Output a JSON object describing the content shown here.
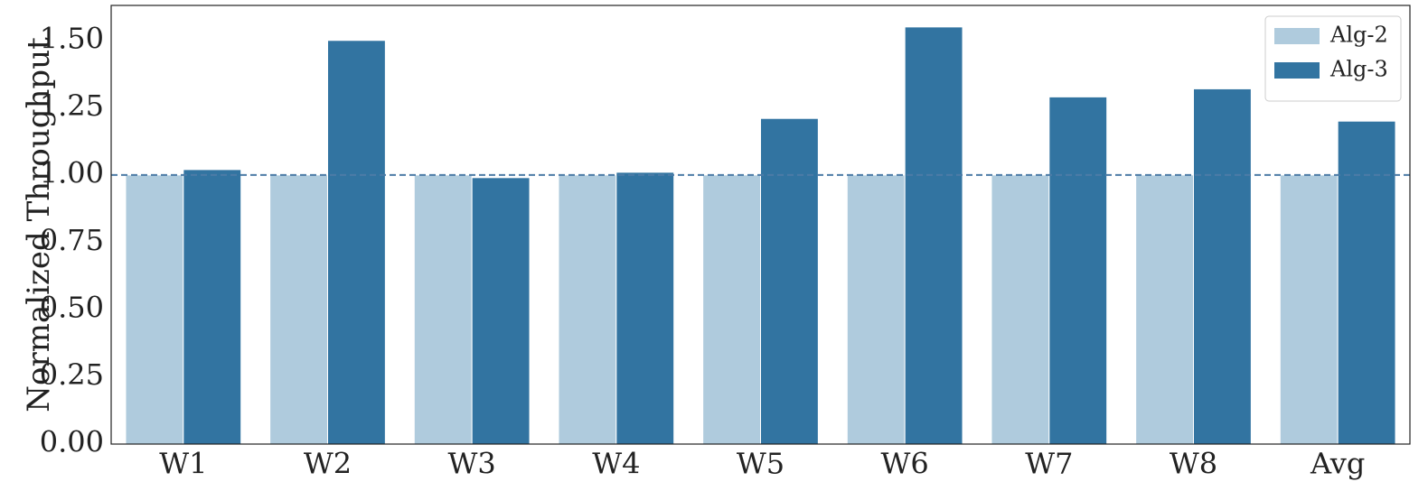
{
  "chart_data": {
    "type": "bar",
    "y_label": "Normalized Throughput",
    "categories": [
      "W1",
      "W2",
      "W3",
      "W4",
      "W5",
      "W6",
      "W7",
      "W8",
      "Avg"
    ],
    "series": [
      {
        "name": "Alg-2",
        "color": "#afcbdd",
        "values": [
          1,
          1,
          1,
          1,
          1,
          1,
          1,
          1,
          1
        ]
      },
      {
        "name": "Alg-3",
        "color": "#3274a1",
        "values": [
          1.02,
          1.5,
          0.99,
          1.01,
          1.21,
          1.55,
          1.29,
          1.32,
          1.2
        ]
      }
    ],
    "ylim": [
      0,
      1.63
    ],
    "yticks": [
      {
        "value": 0,
        "label": "0.00"
      },
      {
        "value": 0.25,
        "label": "0.25"
      },
      {
        "value": 0.5,
        "label": "0.50"
      },
      {
        "value": 0.75,
        "label": "0.75"
      },
      {
        "value": 1,
        "label": "1.00"
      },
      {
        "value": 1.25,
        "label": "1.25"
      },
      {
        "value": 1.5,
        "label": "1.50"
      }
    ],
    "reference_line": {
      "value": 1,
      "color": "#4c7ba6"
    },
    "grid": false,
    "legend": "upper right"
  }
}
